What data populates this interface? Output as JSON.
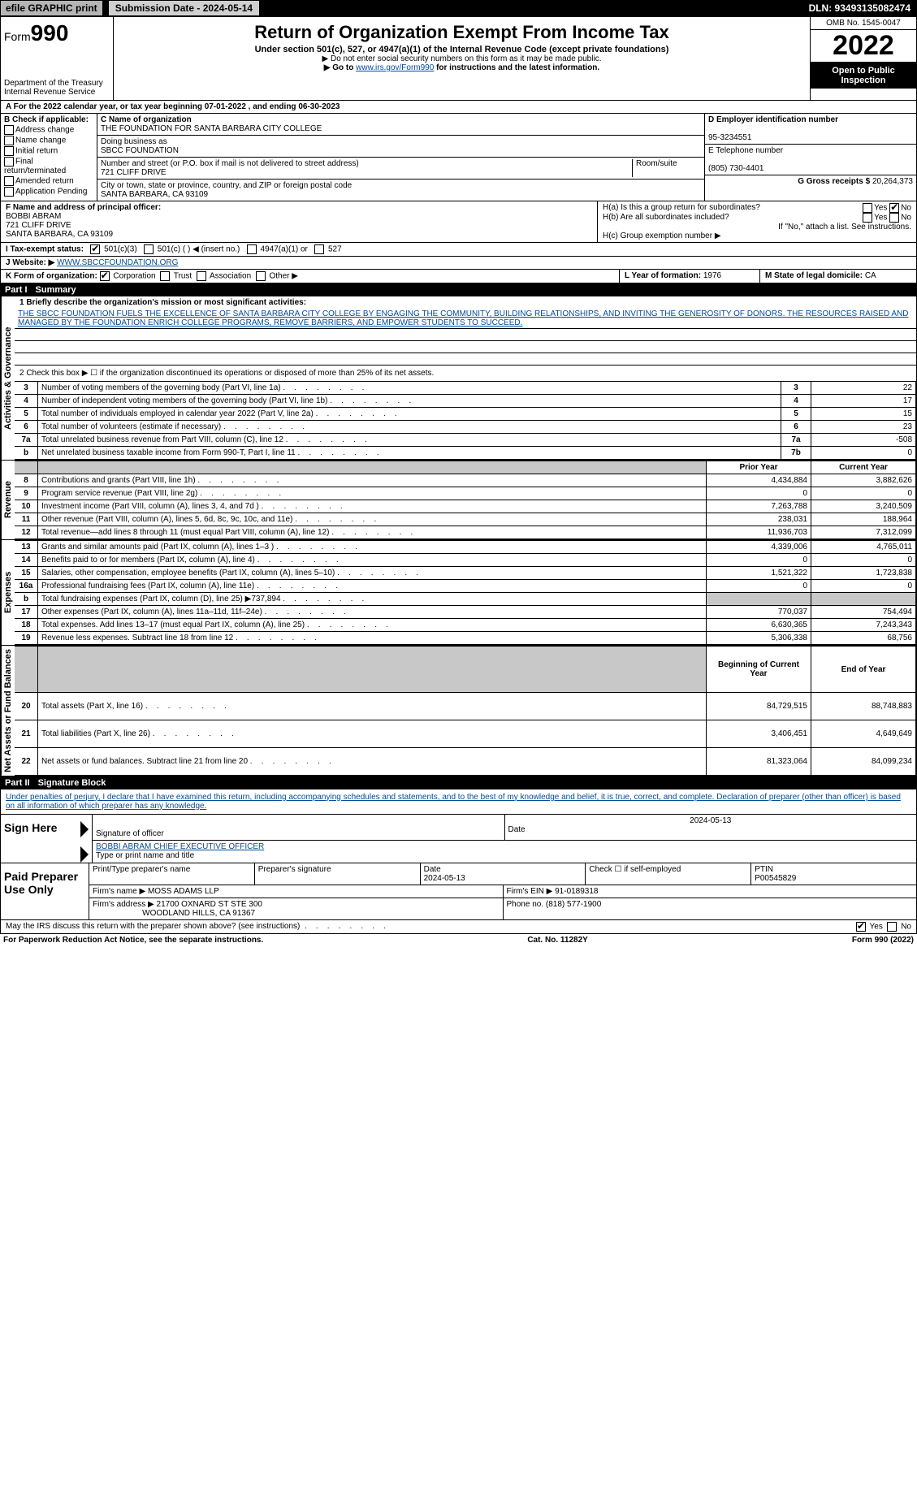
{
  "topbar": {
    "efile": "efile GRAPHIC print",
    "submission": "Submission Date - 2024-05-14",
    "dln": "DLN: 93493135082474"
  },
  "header": {
    "form_prefix": "Form",
    "form_number": "990",
    "dept1": "Department of the Treasury",
    "dept2": "Internal Revenue Service",
    "title": "Return of Organization Exempt From Income Tax",
    "subtitle": "Under section 501(c), 527, or 4947(a)(1) of the Internal Revenue Code (except private foundations)",
    "note1": "▶ Do not enter social security numbers on this form as it may be made public.",
    "note2_pre": "▶ Go to ",
    "note2_link": "www.irs.gov/Form990",
    "note2_post": " for instructions and the latest information.",
    "omb": "OMB No. 1545-0047",
    "year": "2022",
    "open": "Open to Public Inspection"
  },
  "period": "A For the 2022 calendar year, or tax year beginning 07-01-2022    , and ending 06-30-2023",
  "box_b": {
    "label": "B Check if applicable:",
    "items": [
      "Address change",
      "Name change",
      "Initial return",
      "Final return/terminated",
      "Amended return",
      "Application Pending"
    ]
  },
  "box_c": {
    "name_label": "C Name of organization",
    "name": "THE FOUNDATION FOR SANTA BARBARA CITY COLLEGE",
    "dba_label": "Doing business as",
    "dba": "SBCC FOUNDATION",
    "addr_label": "Number and street (or P.O. box if mail is not delivered to street address)",
    "room_label": "Room/suite",
    "addr": "721 CLIFF DRIVE",
    "city_label": "City or town, state or province, country, and ZIP or foreign postal code",
    "city": "SANTA BARBARA, CA  93109"
  },
  "box_d": {
    "label": "D Employer identification number",
    "ein": "95-3234551"
  },
  "box_e": {
    "label": "E Telephone number",
    "phone": "(805) 730-4401"
  },
  "box_g": {
    "label": "G Gross receipts $",
    "amount": "20,264,373"
  },
  "box_f": {
    "label": "F Name and address of principal officer:",
    "name": "BOBBI ABRAM",
    "addr1": "721 CLIFF DRIVE",
    "addr2": "SANTA BARBARA, CA  93109"
  },
  "box_h": {
    "a": "H(a)  Is this a group return for subordinates?",
    "b": "H(b)  Are all subordinates included?",
    "note": "If \"No,\" attach a list. See instructions.",
    "c": "H(c)  Group exemption number ▶",
    "yes": "Yes",
    "no": "No"
  },
  "box_i": {
    "label": "I  Tax-exempt status:",
    "opt1": "501(c)(3)",
    "opt2": "501(c) (   ) ◀ (insert no.)",
    "opt3": "4947(a)(1) or",
    "opt4": "527"
  },
  "box_j": {
    "label": "J  Website: ▶",
    "value": "WWW.SBCCFOUNDATION.ORG"
  },
  "box_k": {
    "label": "K Form of organization:",
    "opts": [
      "Corporation",
      "Trust",
      "Association",
      "Other ▶"
    ]
  },
  "box_l": {
    "label": "L Year of formation:",
    "value": "1976"
  },
  "box_m": {
    "label": "M State of legal domicile:",
    "value": "CA"
  },
  "part1": {
    "title": "Part I",
    "name": "Summary",
    "l1_label": "1  Briefly describe the organization's mission or most significant activities:",
    "l1_text": "THE SBCC FOUNDATION FUELS THE EXCELLENCE OF SANTA BARBARA CITY COLLEGE BY ENGAGING THE COMMUNITY, BUILDING RELATIONSHIPS, AND INVITING THE GENEROSITY OF DONORS. THE RESOURCES RAISED AND MANAGED BY THE FOUNDATION ENRICH COLLEGE PROGRAMS, REMOVE BARRIERS, AND EMPOWER STUDENTS TO SUCCEED.",
    "l2": "2   Check this box ▶ ☐ if the organization discontinued its operations or disposed of more than 25% of its net assets.",
    "rows_gov": [
      {
        "n": "3",
        "txt": "Number of voting members of the governing body (Part VI, line 1a)",
        "box": "3",
        "val": "22"
      },
      {
        "n": "4",
        "txt": "Number of independent voting members of the governing body (Part VI, line 1b)",
        "box": "4",
        "val": "17"
      },
      {
        "n": "5",
        "txt": "Total number of individuals employed in calendar year 2022 (Part V, line 2a)",
        "box": "5",
        "val": "15"
      },
      {
        "n": "6",
        "txt": "Total number of volunteers (estimate if necessary)",
        "box": "6",
        "val": "23"
      },
      {
        "n": "7a",
        "txt": "Total unrelated business revenue from Part VIII, column (C), line 12",
        "box": "7a",
        "val": "-508"
      },
      {
        "n": "b",
        "txt": "Net unrelated business taxable income from Form 990-T, Part I, line 11",
        "box": "7b",
        "val": "0"
      }
    ],
    "prior_label": "Prior Year",
    "current_label": "Current Year",
    "rows_rev": [
      {
        "n": "8",
        "txt": "Contributions and grants (Part VIII, line 1h)",
        "p": "4,434,884",
        "c": "3,882,626"
      },
      {
        "n": "9",
        "txt": "Program service revenue (Part VIII, line 2g)",
        "p": "0",
        "c": "0"
      },
      {
        "n": "10",
        "txt": "Investment income (Part VIII, column (A), lines 3, 4, and 7d )",
        "p": "7,263,788",
        "c": "3,240,509"
      },
      {
        "n": "11",
        "txt": "Other revenue (Part VIII, column (A), lines 5, 6d, 8c, 9c, 10c, and 11e)",
        "p": "238,031",
        "c": "188,964"
      },
      {
        "n": "12",
        "txt": "Total revenue—add lines 8 through 11 (must equal Part VIII, column (A), line 12)",
        "p": "11,936,703",
        "c": "7,312,099"
      }
    ],
    "rows_exp": [
      {
        "n": "13",
        "txt": "Grants and similar amounts paid (Part IX, column (A), lines 1–3 )",
        "p": "4,339,006",
        "c": "4,765,011"
      },
      {
        "n": "14",
        "txt": "Benefits paid to or for members (Part IX, column (A), line 4)",
        "p": "0",
        "c": "0"
      },
      {
        "n": "15",
        "txt": "Salaries, other compensation, employee benefits (Part IX, column (A), lines 5–10)",
        "p": "1,521,322",
        "c": "1,723,838"
      },
      {
        "n": "16a",
        "txt": "Professional fundraising fees (Part IX, column (A), line 11e)",
        "p": "0",
        "c": "0"
      },
      {
        "n": "b",
        "txt": "Total fundraising expenses (Part IX, column (D), line 25) ▶737,894",
        "p": "",
        "c": "",
        "gray": true
      },
      {
        "n": "17",
        "txt": "Other expenses (Part IX, column (A), lines 11a–11d, 11f–24e)",
        "p": "770,037",
        "c": "754,494"
      },
      {
        "n": "18",
        "txt": "Total expenses. Add lines 13–17 (must equal Part IX, column (A), line 25)",
        "p": "6,630,365",
        "c": "7,243,343"
      },
      {
        "n": "19",
        "txt": "Revenue less expenses. Subtract line 18 from line 12",
        "p": "5,306,338",
        "c": "68,756"
      }
    ],
    "beg_label": "Beginning of Current Year",
    "end_label": "End of Year",
    "rows_net": [
      {
        "n": "20",
        "txt": "Total assets (Part X, line 16)",
        "p": "84,729,515",
        "c": "88,748,883"
      },
      {
        "n": "21",
        "txt": "Total liabilities (Part X, line 26)",
        "p": "3,406,451",
        "c": "4,649,649"
      },
      {
        "n": "22",
        "txt": "Net assets or fund balances. Subtract line 21 from line 20",
        "p": "81,323,064",
        "c": "84,099,234"
      }
    ],
    "vtabs": {
      "gov": "Activities & Governance",
      "rev": "Revenue",
      "exp": "Expenses",
      "net": "Net Assets or Fund Balances"
    }
  },
  "part2": {
    "title": "Part II",
    "name": "Signature Block",
    "decl": "Under penalties of perjury, I declare that I have examined this return, including accompanying schedules and statements, and to the best of my knowledge and belief, it is true, correct, and complete. Declaration of preparer (other than officer) is based on all information of which preparer has any knowledge.",
    "sign_here": "Sign Here",
    "sig_officer": "Signature of officer",
    "date_label": "Date",
    "sig_date": "2024-05-13",
    "officer_name": "BOBBI ABRAM CHIEF EXECUTIVE OFFICER",
    "type_label": "Type or print name and title",
    "paid": "Paid Preparer Use Only",
    "p_name_label": "Print/Type preparer's name",
    "p_sig_label": "Preparer's signature",
    "p_date": "2024-05-13",
    "p_check": "Check ☐ if self-employed",
    "ptin_label": "PTIN",
    "ptin": "P00545829",
    "firm_name_label": "Firm's name    ▶",
    "firm_name": "MOSS ADAMS LLP",
    "firm_ein_label": "Firm's EIN ▶",
    "firm_ein": "91-0189318",
    "firm_addr_label": "Firm's address ▶",
    "firm_addr1": "21700 OXNARD ST STE 300",
    "firm_addr2": "WOODLAND HILLS, CA  91367",
    "firm_phone_label": "Phone no.",
    "firm_phone": "(818) 577-1900",
    "discuss": "May the IRS discuss this return with the preparer shown above? (see instructions)",
    "yes": "Yes",
    "no": "No"
  },
  "footer": {
    "left": "For Paperwork Reduction Act Notice, see the separate instructions.",
    "mid": "Cat. No. 11282Y",
    "right": "Form 990 (2022)"
  },
  "colors": {
    "black": "#000000",
    "white": "#ffffff",
    "gray_btn": "#d0d0d0",
    "gray_cell": "#c8c8c8",
    "link": "#004b9b"
  }
}
